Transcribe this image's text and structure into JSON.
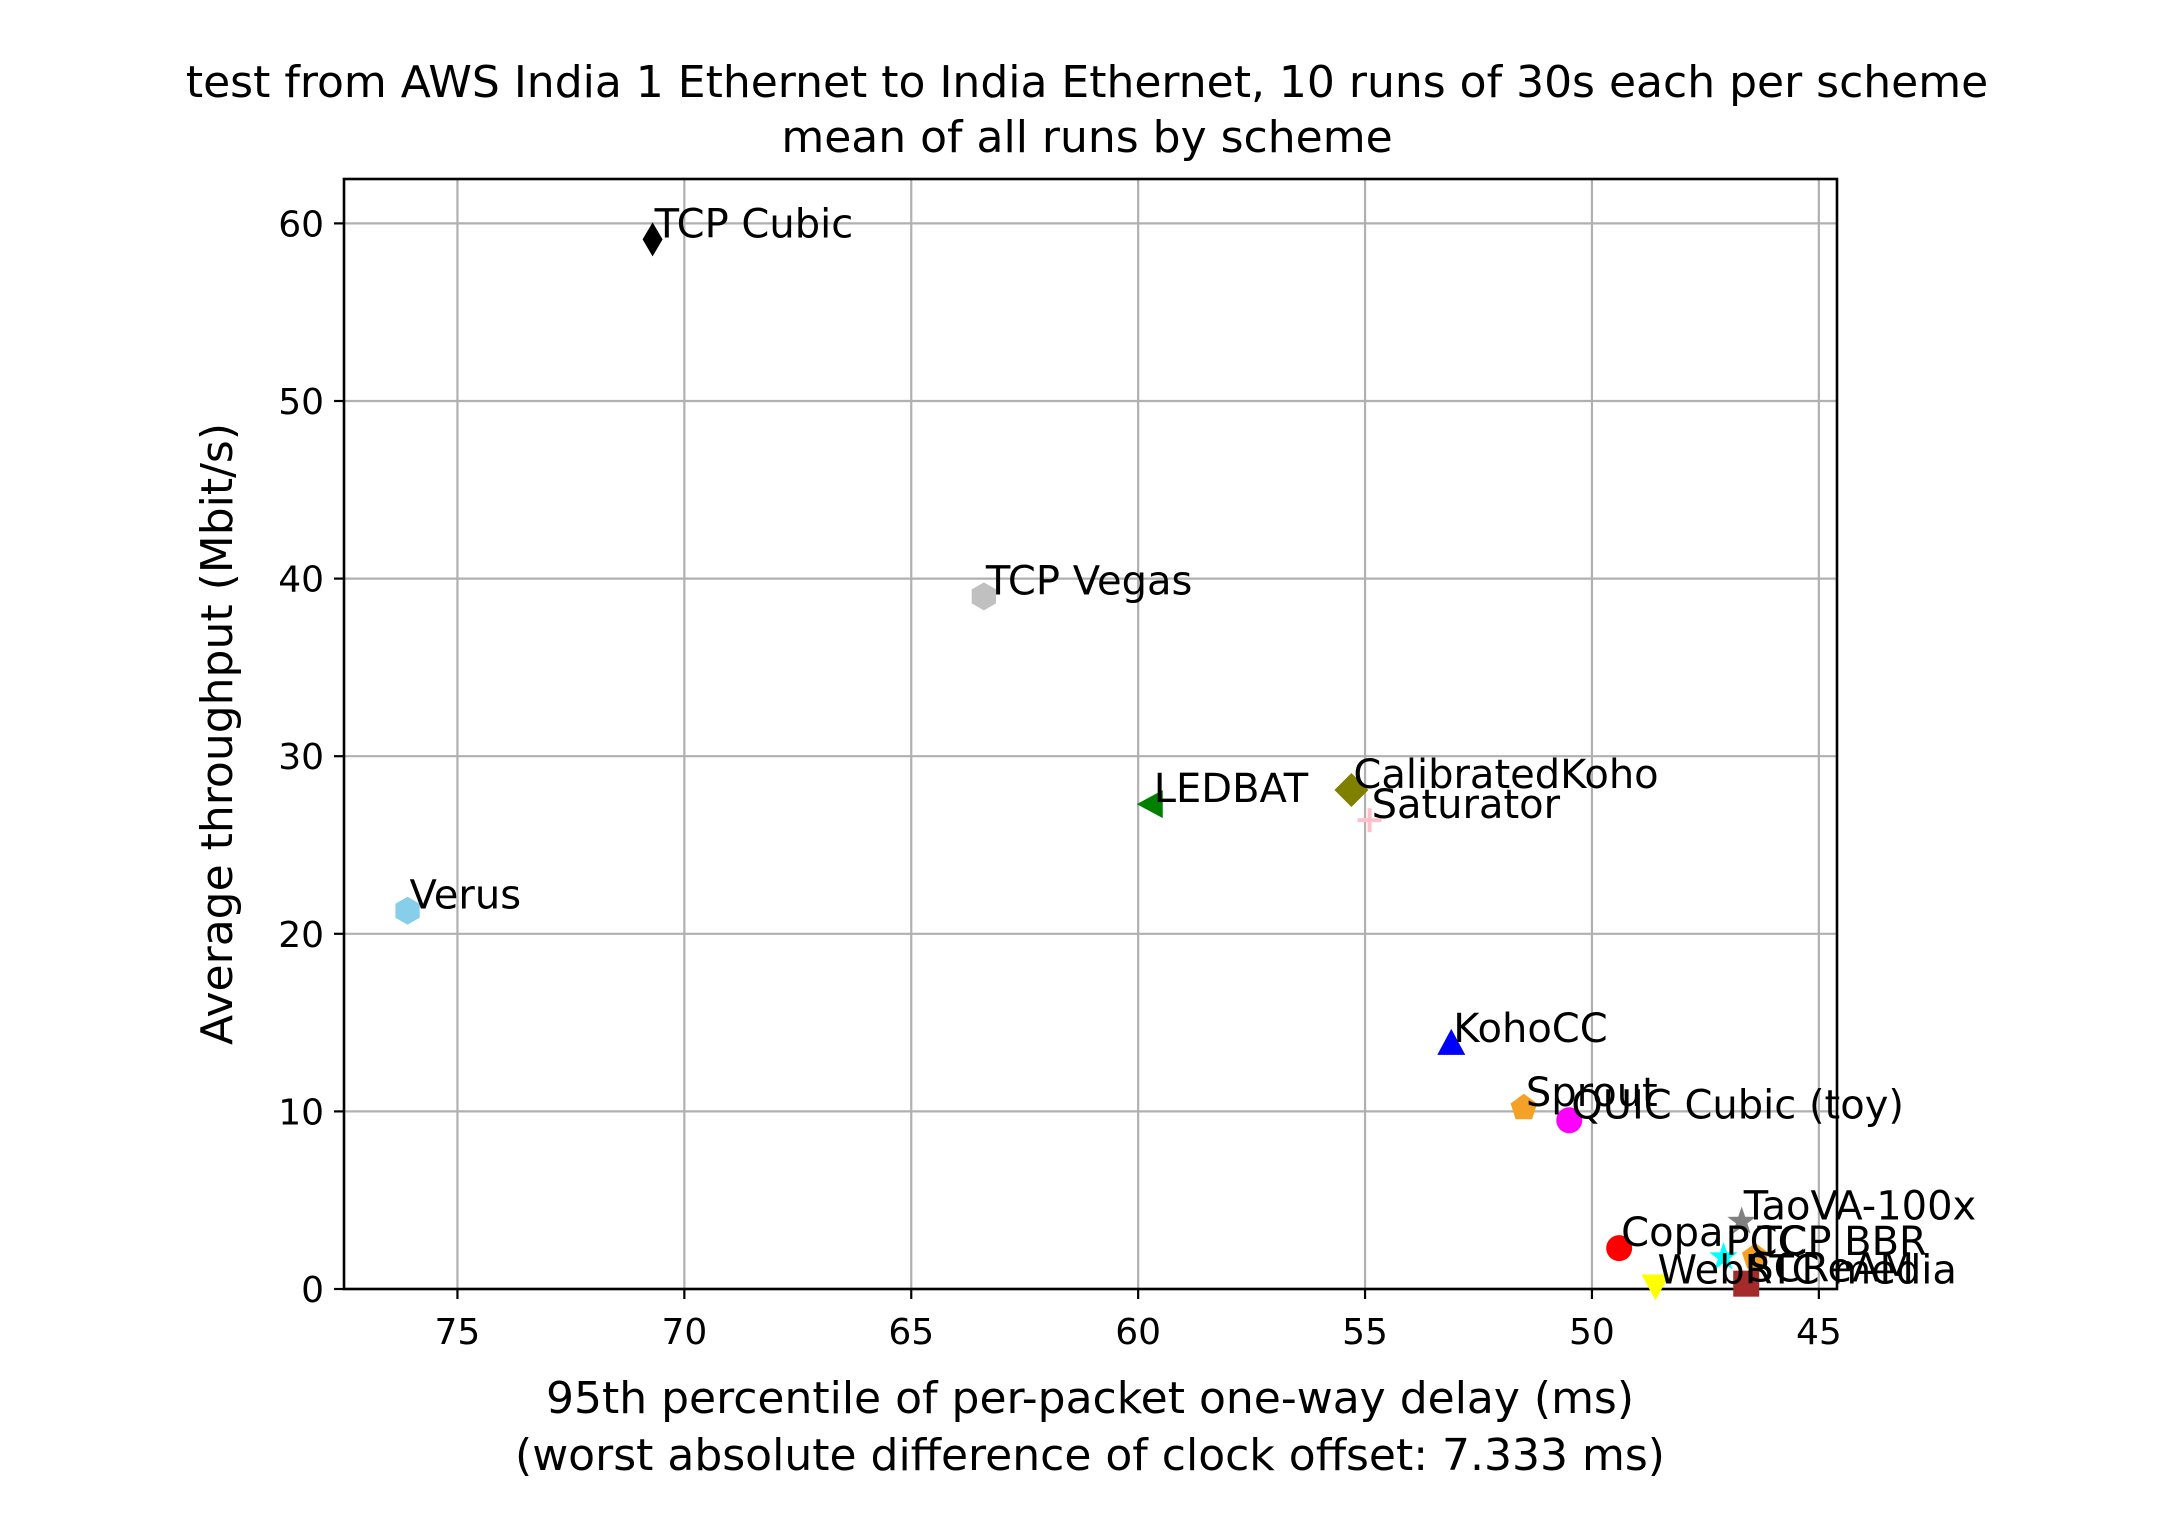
{
  "chart_data": {
    "type": "scatter",
    "title": "test from AWS India 1 Ethernet to India Ethernet, 10 runs of 30s each per scheme",
    "subtitle": "mean of all runs by scheme",
    "xlabel": "95th percentile of per-packet one-way delay (ms)",
    "xlabel_note": "(worst absolute difference of clock offset: 7.333 ms)",
    "ylabel": "Average throughput (Mbit/s)",
    "xlim": [
      77.5,
      44.6
    ],
    "ylim": [
      0,
      62.5
    ],
    "x_inverted": true,
    "grid": true,
    "xticks": [
      75,
      70,
      65,
      60,
      55,
      50,
      45
    ],
    "yticks": [
      0,
      10,
      20,
      30,
      40,
      50,
      60
    ],
    "points": [
      {
        "name": "TCP Cubic",
        "x": 70.7,
        "y": 59.1,
        "marker": "thin_diamond",
        "color": "#000000"
      },
      {
        "name": "TCP Vegas",
        "x": 63.4,
        "y": 39.0,
        "marker": "hexagon",
        "color": "#c0c0c0"
      },
      {
        "name": "LEDBAT",
        "x": 59.7,
        "y": 27.3,
        "marker": "triangle-left",
        "color": "#008000"
      },
      {
        "name": "CalibratedKoho",
        "x": 55.3,
        "y": 28.1,
        "marker": "diamond",
        "color": "#808000"
      },
      {
        "name": "Saturator",
        "x": 54.9,
        "y": 26.4,
        "marker": "plus",
        "color": "#ffc0cb"
      },
      {
        "name": "Verus",
        "x": 76.1,
        "y": 21.3,
        "marker": "hexagon",
        "color": "#87ceeb"
      },
      {
        "name": "KohoCC",
        "x": 53.1,
        "y": 13.8,
        "marker": "triangle-up",
        "color": "#0000ff"
      },
      {
        "name": "Sprout",
        "x": 51.5,
        "y": 10.2,
        "marker": "pentagon",
        "color": "#f4a127"
      },
      {
        "name": "QUIC Cubic (toy)",
        "x": 50.5,
        "y": 9.5,
        "marker": "circle",
        "color": "#ff00ff"
      },
      {
        "name": "TaoVA-100x",
        "x": 46.7,
        "y": 3.8,
        "marker": "star",
        "color": "#808080"
      },
      {
        "name": "Copa",
        "x": 49.4,
        "y": 2.3,
        "marker": "circle",
        "color": "#ff0000"
      },
      {
        "name": "PCC",
        "x": 47.1,
        "y": 1.8,
        "marker": "star",
        "color": "#00ffff"
      },
      {
        "name": "TCP BBR",
        "x": 46.4,
        "y": 1.8,
        "marker": "pentagon",
        "color": "#f4a127"
      },
      {
        "name": "SCReAM",
        "x": 46.6,
        "y": 0.3,
        "marker": "square",
        "color": "#a52a2a"
      },
      {
        "name": "WebRTC media",
        "x": 48.6,
        "y": 0.2,
        "marker": "triangle-down",
        "color": "#ffff00"
      }
    ]
  }
}
